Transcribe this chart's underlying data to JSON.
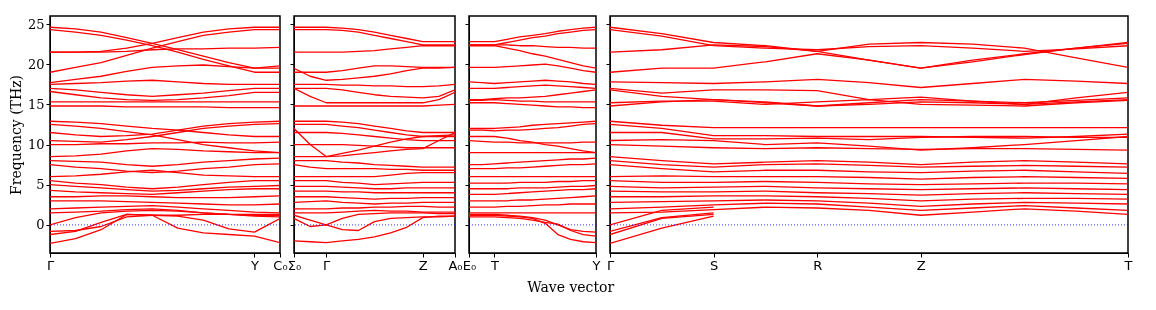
{
  "chart_data": [
    {
      "type": "line",
      "ylabel": "Frequency (THz)",
      "color": "#ff0000",
      "line_style": "solid",
      "marker": "none",
      "grid": false,
      "legend": false,
      "categories": [
        "Γ",
        null,
        null,
        null,
        null,
        null,
        null,
        null,
        "Y",
        "C₀"
      ],
      "ylim": [
        -3.5,
        26
      ],
      "yticks": [
        0,
        5,
        10,
        15,
        20,
        25
      ],
      "ref_lines": [
        {
          "axis": "y",
          "value": 0,
          "color": "#0000ff",
          "line_style": "dotted"
        }
      ],
      "series": [
        {
          "values": [
            24.6,
            24.4,
            24.0,
            23.3,
            22.6,
            21.8,
            21.0,
            20.2,
            19.5,
            19.5
          ]
        },
        {
          "values": [
            24.3,
            24.0,
            23.6,
            23.0,
            22.3,
            21.5,
            20.6,
            19.8,
            19.0,
            19.0
          ]
        },
        {
          "values": [
            21.5,
            21.5,
            21.6,
            22.0,
            22.6,
            23.3,
            24.0,
            24.4,
            24.6,
            24.6
          ]
        },
        {
          "values": [
            19.0,
            19.6,
            20.2,
            21.1,
            22.0,
            22.8,
            23.6,
            24.0,
            24.3,
            24.3
          ]
        },
        {
          "values": [
            21.5,
            21.5,
            21.5,
            21.6,
            21.8,
            21.9,
            21.9,
            22.0,
            22.0,
            22.1
          ]
        },
        {
          "values": [
            17.7,
            18.1,
            18.5,
            19.1,
            19.6,
            19.8,
            19.9,
            19.7,
            19.5,
            19.8
          ]
        },
        {
          "values": [
            17.5,
            17.6,
            17.7,
            17.9,
            18.0,
            17.8,
            17.6,
            17.5,
            17.5,
            17.5
          ]
        },
        {
          "values": [
            17.0,
            16.8,
            16.5,
            16.2,
            16.0,
            16.2,
            16.4,
            16.7,
            17.0,
            17.0
          ]
        },
        {
          "values": [
            16.6,
            16.2,
            15.8,
            15.6,
            15.5,
            15.6,
            15.8,
            16.1,
            16.5,
            16.5
          ]
        },
        {
          "values": [
            15.3,
            15.3,
            15.3,
            15.3,
            15.3,
            15.3,
            15.3,
            15.3,
            15.3,
            15.3
          ]
        },
        {
          "values": [
            14.8,
            14.8,
            14.8,
            14.7,
            14.7,
            14.7,
            14.7,
            14.6,
            14.6,
            14.6
          ]
        },
        {
          "values": [
            12.9,
            12.8,
            12.6,
            12.3,
            12.0,
            11.8,
            11.5,
            11.2,
            11.0,
            11.0
          ]
        },
        {
          "values": [
            12.5,
            12.3,
            12.0,
            11.6,
            11.2,
            10.6,
            10.0,
            9.6,
            9.2,
            9.0
          ]
        },
        {
          "values": [
            11.5,
            11.2,
            11.0,
            11.1,
            11.3,
            11.8,
            12.3,
            12.6,
            12.8,
            12.9
          ]
        },
        {
          "values": [
            10.5,
            10.4,
            10.3,
            10.6,
            11.0,
            11.5,
            12.0,
            12.3,
            12.5,
            12.6
          ]
        },
        {
          "values": [
            10.0,
            10.0,
            10.1,
            10.1,
            10.2,
            10.2,
            10.3,
            10.2,
            10.2,
            10.3
          ]
        },
        {
          "values": [
            8.5,
            8.6,
            8.8,
            9.2,
            9.5,
            9.4,
            9.2,
            9.1,
            9.0,
            9.0
          ]
        },
        {
          "values": [
            8.0,
            7.9,
            7.8,
            7.5,
            7.3,
            7.5,
            7.8,
            8.0,
            8.2,
            8.3
          ]
        },
        {
          "values": [
            7.5,
            7.2,
            7.0,
            6.7,
            6.5,
            6.7,
            7.0,
            7.2,
            7.5,
            7.6
          ]
        },
        {
          "values": [
            6.0,
            6.1,
            6.3,
            6.6,
            6.8,
            6.5,
            6.2,
            6.1,
            6.0,
            6.0
          ]
        },
        {
          "values": [
            5.5,
            5.2,
            5.0,
            4.7,
            4.5,
            4.7,
            5.0,
            5.3,
            5.5,
            5.5
          ]
        },
        {
          "values": [
            5.0,
            4.8,
            4.6,
            4.4,
            4.2,
            4.3,
            4.5,
            4.7,
            4.8,
            4.9
          ]
        },
        {
          "values": [
            4.3,
            4.1,
            4.0,
            3.9,
            3.8,
            4.0,
            4.2,
            4.4,
            4.5,
            4.5
          ]
        },
        {
          "values": [
            3.5,
            3.5,
            3.6,
            3.6,
            3.5,
            3.4,
            3.4,
            3.4,
            3.5,
            3.6
          ]
        },
        {
          "values": [
            3.0,
            3.0,
            3.0,
            2.9,
            2.8,
            2.7,
            2.6,
            2.5,
            2.5,
            2.6
          ]
        },
        {
          "values": [
            2.0,
            2.1,
            2.2,
            2.3,
            2.4,
            2.2,
            2.0,
            1.8,
            1.6,
            1.5
          ]
        },
        {
          "values": [
            1.5,
            1.6,
            1.7,
            1.9,
            2.0,
            1.8,
            1.5,
            1.3,
            1.1,
            1.0
          ]
        },
        {
          "values": [
            -2.3,
            -1.7,
            -0.6,
            1.3,
            1.2,
            -0.4,
            -1.0,
            -1.2,
            -1.4,
            -2.2
          ]
        },
        {
          "values": [
            -1.2,
            -0.8,
            0.3,
            1.3,
            1.2,
            1.1,
            0.6,
            -0.5,
            -0.9,
            0.8
          ]
        },
        {
          "values": [
            0,
            0.9,
            1.5,
            1.7,
            1.8,
            1.7,
            1.5,
            1.3,
            1.2,
            1.2
          ]
        },
        {
          "values": [
            -0.8,
            -0.7,
            -0.2,
            1.0,
            1.2,
            1.2,
            1.3,
            1.3,
            1.3,
            1.3
          ]
        }
      ]
    },
    {
      "type": "line",
      "color": "#ff0000",
      "line_style": "solid",
      "marker": "none",
      "grid": false,
      "legend": false,
      "tick_labels": "x",
      "categories": [
        "Σ₀",
        null,
        "Γ",
        null,
        null,
        null,
        null,
        null,
        "Z",
        null,
        "A₀"
      ],
      "ylim": [
        -3.5,
        26
      ],
      "yticks": [
        0,
        5,
        10,
        15,
        20,
        25
      ],
      "ref_lines": [
        {
          "axis": "y",
          "value": 0,
          "color": "#0000ff",
          "line_style": "dotted"
        }
      ],
      "series": [
        {
          "values": [
            24.6,
            24.6,
            24.6,
            24.5,
            24.3,
            24.0,
            23.6,
            23.2,
            22.8,
            22.8,
            22.8
          ]
        },
        {
          "values": [
            24.3,
            24.3,
            24.3,
            24.2,
            24.0,
            23.6,
            23.2,
            22.8,
            22.4,
            22.4,
            22.4
          ]
        },
        {
          "values": [
            21.5,
            21.5,
            21.5,
            21.5,
            21.6,
            21.7,
            21.9,
            22.1,
            22.3,
            22.3,
            22.3
          ]
        },
        {
          "values": [
            19.0,
            19.0,
            19.0,
            19.2,
            19.5,
            19.8,
            19.8,
            19.7,
            19.6,
            19.6,
            19.6
          ]
        },
        {
          "values": [
            19.5,
            18.5,
            18.0,
            18.1,
            18.3,
            18.5,
            18.8,
            19.2,
            19.5,
            19.5,
            19.6
          ]
        },
        {
          "values": [
            17.5,
            17.5,
            17.5,
            17.4,
            17.4,
            17.3,
            17.3,
            17.2,
            17.2,
            17.3,
            17.5
          ]
        },
        {
          "values": [
            17.0,
            17.0,
            17.0,
            16.8,
            16.5,
            16.2,
            16.0,
            15.9,
            15.8,
            16.0,
            16.8
          ]
        },
        {
          "values": [
            17.0,
            16.0,
            15.2,
            15.2,
            15.2,
            15.2,
            15.2,
            15.2,
            15.2,
            15.6,
            16.5
          ]
        },
        {
          "values": [
            14.8,
            14.8,
            14.8,
            14.8,
            14.8,
            14.8,
            14.8,
            14.8,
            14.8,
            14.9,
            15.0
          ]
        },
        {
          "values": [
            12.9,
            12.9,
            12.9,
            12.8,
            12.6,
            12.3,
            12.0,
            11.7,
            11.5,
            11.5,
            11.5
          ]
        },
        {
          "values": [
            12.5,
            12.5,
            12.5,
            12.3,
            12.1,
            11.8,
            11.5,
            11.2,
            11.0,
            11.1,
            11.2
          ]
        },
        {
          "values": [
            12.0,
            10.0,
            8.5,
            8.6,
            8.8,
            9.0,
            9.2,
            9.4,
            9.5,
            10.5,
            11.5
          ]
        },
        {
          "values": [
            11.5,
            11.5,
            11.5,
            11.4,
            11.2,
            11.0,
            10.8,
            10.6,
            10.5,
            10.5,
            10.5
          ]
        },
        {
          "values": [
            10.0,
            10.0,
            10.0,
            10.0,
            9.9,
            9.8,
            9.7,
            9.6,
            9.6,
            9.6,
            9.6
          ]
        },
        {
          "values": [
            8.5,
            8.5,
            8.5,
            8.9,
            9.3,
            9.8,
            10.3,
            10.7,
            11.0,
            11.0,
            11.0
          ]
        },
        {
          "values": [
            8.0,
            8.0,
            8.0,
            7.8,
            7.7,
            7.5,
            7.4,
            7.3,
            7.2,
            7.2,
            7.2
          ]
        },
        {
          "values": [
            7.5,
            7.2,
            7.0,
            7.0,
            7.0,
            7.0,
            6.9,
            6.9,
            6.8,
            6.8,
            6.8
          ]
        },
        {
          "values": [
            6.0,
            6.0,
            6.0,
            6.0,
            6.0,
            6.0,
            6.2,
            6.4,
            6.5,
            6.5,
            6.5
          ]
        },
        {
          "values": [
            5.5,
            5.5,
            5.5,
            5.3,
            5.2,
            5.0,
            5.1,
            5.2,
            5.3,
            5.3,
            5.3
          ]
        },
        {
          "values": [
            4.8,
            4.8,
            4.8,
            4.7,
            4.6,
            4.5,
            4.5,
            4.6,
            4.6,
            4.6,
            4.6
          ]
        },
        {
          "values": [
            4.2,
            4.2,
            4.2,
            4.1,
            4.1,
            4.0,
            4.0,
            4.0,
            4.0,
            4.0,
            4.0
          ]
        },
        {
          "values": [
            3.5,
            3.5,
            3.5,
            3.4,
            3.3,
            3.2,
            3.3,
            3.3,
            3.4,
            3.4,
            3.4
          ]
        },
        {
          "values": [
            2.8,
            2.9,
            3.0,
            2.8,
            2.7,
            2.6,
            2.7,
            2.7,
            2.8,
            2.8,
            2.8
          ]
        },
        {
          "values": [
            2.0,
            2.0,
            2.0,
            2.1,
            2.1,
            2.2,
            2.2,
            2.3,
            2.3,
            2.2,
            2.2
          ]
        },
        {
          "values": [
            1.5,
            1.5,
            1.5,
            1.6,
            1.7,
            1.8,
            1.7,
            1.7,
            1.6,
            1.6,
            1.6
          ]
        },
        {
          "values": [
            -2.0,
            -2.1,
            -2.2,
            -2.0,
            -1.8,
            -1.5,
            -1.0,
            -0.3,
            0.9,
            1.1,
            1.1
          ]
        },
        {
          "values": [
            0.8,
            -0.2,
            0,
            -0.6,
            -0.7,
            0.4,
            0.8,
            0.9,
            1.0,
            1.0,
            1.1
          ]
        },
        {
          "values": [
            1.2,
            0.6,
            0,
            0.8,
            1.3,
            1.4,
            1.5,
            1.5,
            1.5,
            1.4,
            1.4
          ]
        }
      ]
    },
    {
      "type": "line",
      "xlabel": "Wave vector",
      "color": "#ff0000",
      "line_style": "solid",
      "marker": "none",
      "grid": false,
      "legend": false,
      "tick_labels": "x",
      "categories": [
        "E₀",
        null,
        "T",
        null,
        null,
        null,
        null,
        null,
        null,
        null,
        "Y"
      ],
      "ylim": [
        -3.5,
        26
      ],
      "yticks": [
        0,
        5,
        10,
        15,
        20,
        25
      ],
      "ref_lines": [
        {
          "axis": "y",
          "value": 0,
          "color": "#0000ff",
          "line_style": "dotted"
        }
      ],
      "series": [
        {
          "values": [
            22.8,
            22.8,
            22.8,
            23.1,
            23.4,
            23.6,
            23.8,
            24.1,
            24.3,
            24.5,
            24.6
          ]
        },
        {
          "values": [
            22.4,
            22.4,
            22.4,
            22.7,
            23.0,
            23.3,
            23.5,
            23.8,
            24.0,
            24.2,
            24.3
          ]
        },
        {
          "values": [
            22.3,
            22.3,
            22.3,
            22.0,
            21.7,
            21.3,
            21.0,
            20.6,
            20.2,
            19.8,
            19.5
          ]
        },
        {
          "values": [
            19.6,
            19.6,
            19.6,
            19.7,
            19.8,
            19.9,
            20.0,
            19.8,
            19.5,
            19.2,
            19.0
          ]
        },
        {
          "values": [
            22.4,
            22.4,
            22.4,
            22.4,
            22.3,
            22.3,
            22.2,
            22.1,
            22.1,
            22.0,
            22.0
          ]
        },
        {
          "values": [
            17.8,
            17.7,
            17.6,
            17.7,
            17.8,
            17.9,
            18.0,
            17.9,
            17.8,
            17.6,
            17.5
          ]
        },
        {
          "values": [
            17.0,
            17.0,
            17.0,
            17.1,
            17.2,
            17.3,
            17.4,
            17.3,
            17.2,
            17.1,
            17.0
          ]
        },
        {
          "values": [
            15.6,
            15.6,
            15.7,
            15.8,
            15.8,
            15.9,
            16.0,
            16.2,
            16.4,
            16.6,
            16.8
          ]
        },
        {
          "values": [
            15.5,
            15.5,
            15.6,
            15.5,
            15.4,
            15.4,
            15.3,
            15.3,
            15.3,
            15.3,
            15.3
          ]
        },
        {
          "values": [
            15.2,
            15.2,
            15.2,
            15.1,
            15.0,
            14.9,
            14.8,
            14.7,
            14.7,
            14.6,
            14.6
          ]
        },
        {
          "values": [
            12.0,
            12.0,
            12.0,
            12.1,
            12.2,
            12.4,
            12.5,
            12.6,
            12.7,
            12.8,
            12.9
          ]
        },
        {
          "values": [
            11.8,
            11.8,
            11.7,
            11.8,
            11.8,
            11.9,
            12.0,
            12.1,
            12.3,
            12.5,
            12.6
          ]
        },
        {
          "values": [
            11.0,
            11.0,
            11.0,
            10.8,
            10.5,
            10.3,
            10.0,
            9.8,
            9.5,
            9.2,
            9.0
          ]
        },
        {
          "values": [
            10.5,
            10.4,
            10.3,
            10.3,
            10.2,
            10.2,
            10.2,
            10.2,
            10.2,
            10.3,
            10.3
          ]
        },
        {
          "values": [
            9.0,
            9.0,
            9.0,
            9.0,
            9.0,
            9.0,
            9.0,
            9.0,
            9.0,
            9.0,
            9.0
          ]
        },
        {
          "values": [
            7.5,
            7.5,
            7.6,
            7.7,
            7.8,
            7.9,
            8.0,
            8.1,
            8.2,
            8.2,
            8.3
          ]
        },
        {
          "values": [
            7.0,
            7.0,
            7.0,
            7.1,
            7.1,
            7.2,
            7.3,
            7.4,
            7.5,
            7.5,
            7.6
          ]
        },
        {
          "values": [
            6.0,
            6.0,
            6.0,
            6.0,
            6.0,
            6.0,
            6.0,
            6.0,
            6.0,
            6.0,
            6.0
          ]
        },
        {
          "values": [
            5.2,
            5.2,
            5.2,
            5.2,
            5.3,
            5.3,
            5.3,
            5.4,
            5.4,
            5.5,
            5.5
          ]
        },
        {
          "values": [
            4.5,
            4.5,
            4.5,
            4.5,
            4.6,
            4.6,
            4.6,
            4.7,
            4.8,
            4.8,
            4.9
          ]
        },
        {
          "values": [
            3.8,
            3.8,
            3.8,
            3.9,
            4.0,
            4.1,
            4.2,
            4.3,
            4.4,
            4.4,
            4.5
          ]
        },
        {
          "values": [
            3.0,
            3.0,
            3.0,
            3.0,
            3.1,
            3.1,
            3.2,
            3.3,
            3.4,
            3.5,
            3.6
          ]
        },
        {
          "values": [
            2.2,
            2.2,
            2.2,
            2.3,
            2.3,
            2.4,
            2.5,
            2.5,
            2.6,
            2.6,
            2.6
          ]
        },
        {
          "values": [
            1.5,
            1.5,
            1.5,
            1.5,
            1.5,
            1.5,
            1.5,
            1.5,
            1.5,
            1.5,
            1.5
          ]
        },
        {
          "values": [
            1.2,
            1.2,
            1.2,
            1.1,
            1.0,
            0.8,
            0.2,
            -1.2,
            -1.8,
            -2.1,
            -2.2
          ]
        },
        {
          "values": [
            1.0,
            1.0,
            1.0,
            0.9,
            0.8,
            0.6,
            0.3,
            0.1,
            -0.7,
            -1.2,
            -1.4
          ]
        },
        {
          "values": [
            1.3,
            1.3,
            1.3,
            1.2,
            1.1,
            0.9,
            0.6,
            0.0,
            -0.6,
            -0.8,
            -0.9
          ]
        }
      ]
    },
    {
      "type": "line",
      "color": "#ff0000",
      "line_style": "solid",
      "marker": "none",
      "grid": false,
      "legend": false,
      "tick_labels": "x",
      "categories": [
        "Γ",
        null,
        "S",
        null,
        "R",
        null,
        "Z",
        null,
        null,
        null,
        "T"
      ],
      "ylim": [
        -3.5,
        26
      ],
      "yticks": [
        0,
        5,
        10,
        15,
        20,
        25
      ],
      "ref_lines": [
        {
          "axis": "y",
          "value": 0,
          "color": "#0000ff",
          "line_style": "dotted"
        }
      ],
      "series": [
        {
          "values": [
            24.6,
            23.8,
            22.7,
            22.3,
            21.6,
            20.5,
            19.5,
            20.3,
            21.2,
            22.0,
            22.7
          ]
        },
        {
          "values": [
            24.3,
            23.5,
            22.3,
            22.0,
            21.8,
            22.2,
            22.3,
            22.0,
            21.6,
            21.9,
            22.3
          ]
        },
        {
          "values": [
            21.5,
            21.8,
            22.4,
            22.2,
            21.6,
            22.5,
            22.7,
            22.5,
            22.0,
            20.8,
            19.6
          ]
        },
        {
          "values": [
            19.0,
            19.5,
            19.5,
            20.3,
            21.3,
            20.5,
            19.5,
            20.5,
            21.3,
            22.0,
            22.6
          ]
        },
        {
          "values": [
            17.8,
            17.7,
            17.6,
            17.8,
            18.1,
            17.7,
            17.1,
            17.6,
            18.1,
            17.9,
            17.6
          ]
        },
        {
          "values": [
            17.0,
            16.4,
            16.8,
            16.8,
            16.7,
            15.6,
            15.9,
            15.4,
            15.0,
            15.8,
            16.5
          ]
        },
        {
          "values": [
            16.8,
            16.0,
            15.6,
            15.2,
            14.8,
            15.2,
            15.6,
            15.4,
            15.2,
            15.5,
            15.8
          ]
        },
        {
          "values": [
            15.2,
            15.4,
            15.4,
            15.0,
            15.3,
            15.6,
            15.0,
            14.9,
            14.8,
            15.2,
            15.5
          ]
        },
        {
          "values": [
            14.8,
            15.3,
            15.6,
            15.3,
            14.8,
            15.0,
            15.3,
            15.2,
            15.0,
            15.3,
            15.6
          ]
        },
        {
          "values": [
            12.9,
            12.4,
            12.1,
            12.1,
            12.1,
            12.1,
            12.1,
            12.1,
            12.1,
            12.1,
            12.1
          ]
        },
        {
          "values": [
            12.5,
            12.0,
            11.1,
            11.1,
            11.0,
            11.0,
            11.0,
            10.9,
            10.8,
            11.0,
            11.3
          ]
        },
        {
          "values": [
            11.5,
            11.5,
            10.7,
            10.7,
            10.8,
            10.6,
            10.9,
            11.0,
            11.0,
            10.9,
            10.9
          ]
        },
        {
          "values": [
            10.5,
            10.6,
            10.5,
            10.0,
            10.2,
            9.8,
            9.3,
            9.6,
            10.0,
            10.5,
            11.0
          ]
        },
        {
          "values": [
            10.0,
            9.8,
            9.6,
            9.5,
            9.6,
            9.5,
            9.4,
            9.5,
            9.5,
            9.4,
            9.3
          ]
        },
        {
          "values": [
            8.5,
            8.0,
            7.6,
            7.8,
            8.0,
            7.8,
            7.5,
            7.8,
            8.0,
            7.8,
            7.6
          ]
        },
        {
          "values": [
            8.0,
            7.5,
            7.2,
            7.5,
            7.6,
            7.4,
            7.2,
            7.3,
            7.4,
            7.3,
            7.2
          ]
        },
        {
          "values": [
            7.5,
            7.0,
            6.6,
            6.8,
            6.8,
            6.6,
            6.5,
            6.7,
            6.8,
            6.6,
            6.4
          ]
        },
        {
          "values": [
            6.0,
            6.1,
            6.0,
            6.0,
            6.0,
            5.9,
            5.7,
            5.9,
            6.0,
            5.9,
            5.8
          ]
        },
        {
          "values": [
            5.5,
            5.3,
            5.3,
            5.4,
            5.3,
            5.1,
            5.0,
            5.1,
            5.2,
            5.2,
            5.1
          ]
        },
        {
          "values": [
            4.8,
            4.6,
            4.7,
            4.8,
            4.6,
            4.5,
            4.4,
            4.5,
            4.6,
            4.5,
            4.4
          ]
        },
        {
          "values": [
            4.2,
            4.1,
            4.1,
            4.2,
            4.0,
            3.9,
            3.7,
            3.9,
            4.0,
            3.9,
            3.8
          ]
        },
        {
          "values": [
            3.5,
            3.5,
            3.6,
            3.6,
            3.5,
            3.3,
            3.0,
            3.2,
            3.3,
            3.3,
            3.2
          ]
        },
        {
          "values": [
            2.8,
            2.9,
            3.0,
            3.1,
            3.0,
            2.7,
            2.3,
            2.6,
            2.8,
            2.7,
            2.6
          ]
        },
        {
          "values": [
            2.0,
            2.2,
            2.5,
            2.7,
            2.6,
            2.2,
            1.8,
            2.1,
            2.4,
            2.1,
            1.8
          ]
        },
        {
          "values": [
            1.5,
            1.6,
            1.9,
            2.2,
            2.1,
            1.8,
            1.2,
            1.6,
            2.0,
            1.7,
            1.3
          ]
        },
        {
          "values": [
            -2.3,
            -0.4,
            1.1,
            null,
            null,
            null,
            null,
            null,
            null,
            null,
            null
          ]
        },
        {
          "values": [
            -1.2,
            0.8,
            1.3,
            null,
            null,
            null,
            null,
            null,
            null,
            null,
            null
          ]
        },
        {
          "values": [
            -0.8,
            0.9,
            1.5,
            null,
            null,
            null,
            null,
            null,
            null,
            null,
            null
          ]
        },
        {
          "values": [
            0,
            1.8,
            2.2,
            null,
            null,
            null,
            null,
            null,
            null,
            null,
            null
          ]
        }
      ]
    }
  ]
}
